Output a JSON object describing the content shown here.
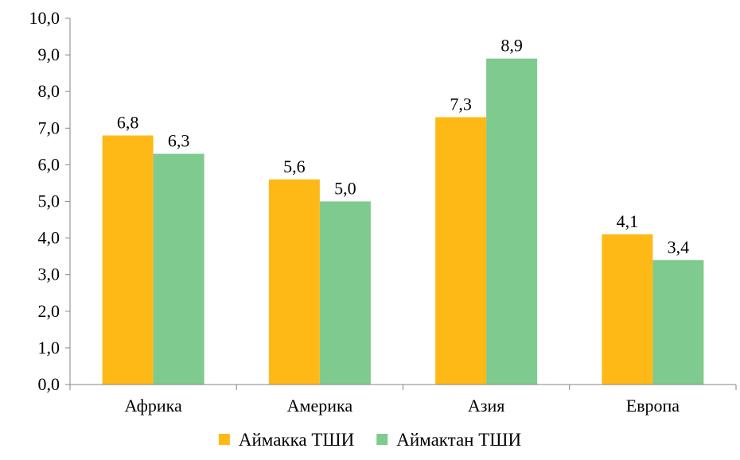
{
  "chart_data": {
    "type": "bar",
    "categories": [
      "Африка",
      "Америка",
      "Азия",
      "Европа"
    ],
    "series": [
      {
        "name": "Аймакка ТШИ",
        "values": [
          6.8,
          5.6,
          7.3,
          4.1
        ],
        "color": "#FFB916"
      },
      {
        "name": "Аймактан ТШИ",
        "values": [
          6.3,
          5.0,
          8.9,
          3.4
        ],
        "color": "#7FCA8E"
      }
    ],
    "data_labels": [
      [
        "6,8",
        "5,6",
        "7,3",
        "4,1"
      ],
      [
        "6,3",
        "5,0",
        "8,9",
        "3,4"
      ]
    ],
    "y_ticks": [
      "0,0",
      "1,0",
      "2,0",
      "3,0",
      "4,0",
      "5,0",
      "6,0",
      "7,0",
      "8,0",
      "9,0",
      "10,0"
    ],
    "ylim": [
      0,
      10
    ],
    "grid": false,
    "legend_position": "bottom",
    "title": "",
    "xlabel": "",
    "ylabel": ""
  }
}
